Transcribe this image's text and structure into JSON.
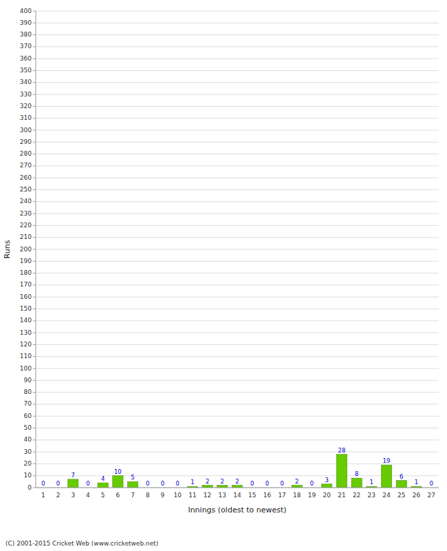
{
  "chart_data": {
    "type": "bar",
    "categories": [
      "1",
      "2",
      "3",
      "4",
      "5",
      "6",
      "7",
      "8",
      "9",
      "10",
      "11",
      "12",
      "13",
      "14",
      "15",
      "16",
      "17",
      "18",
      "19",
      "20",
      "21",
      "22",
      "23",
      "24",
      "25",
      "26",
      "27"
    ],
    "values": [
      0,
      0,
      7,
      0,
      4,
      10,
      5,
      0,
      0,
      0,
      1,
      2,
      2,
      2,
      0,
      0,
      0,
      2,
      0,
      3,
      28,
      8,
      1,
      19,
      6,
      1,
      0
    ],
    "color": "#66cc00",
    "xlabel": "Innings (oldest to newest)",
    "ylabel": "Runs",
    "ylim": [
      0,
      400
    ],
    "yticks": [
      0,
      10,
      20,
      30,
      40,
      50,
      60,
      70,
      80,
      90,
      100,
      110,
      120,
      130,
      140,
      150,
      160,
      170,
      180,
      190,
      200,
      210,
      220,
      230,
      240,
      250,
      260,
      270,
      280,
      290,
      300,
      310,
      320,
      330,
      340,
      350,
      360,
      370,
      380,
      390,
      400
    ],
    "grid": true,
    "data_labels": true,
    "annotations": [
      "(C) 2001-2015 Cricket Web (www.cricketweb.net)"
    ]
  }
}
